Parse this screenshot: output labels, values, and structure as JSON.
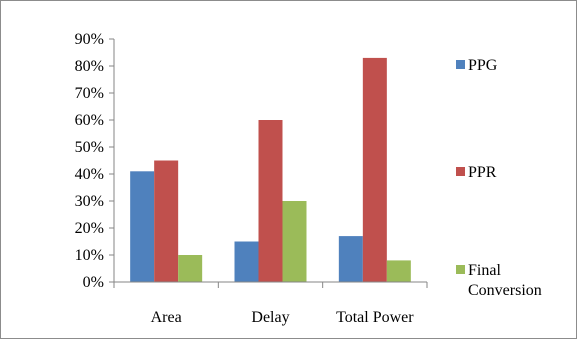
{
  "chart_data": {
    "type": "bar",
    "categories": [
      "Area",
      "Delay",
      "Total Power"
    ],
    "y_ticks": [
      "0%",
      "10%",
      "20%",
      "30%",
      "40%",
      "50%",
      "60%",
      "70%",
      "80%",
      "90%"
    ],
    "ylim": [
      0,
      90
    ],
    "unit": "%",
    "grid": false,
    "legend_position": "right",
    "series": [
      {
        "name": "PPG",
        "color": "#4f81bd",
        "values": [
          41,
          15,
          17
        ]
      },
      {
        "name": "PPR",
        "color": "#c0504d",
        "values": [
          45,
          60,
          83
        ]
      },
      {
        "name": "Final Conversion",
        "name_lines": [
          "Final",
          "Conversion"
        ],
        "color": "#9bbb59",
        "values": [
          10,
          30,
          8
        ]
      }
    ]
  }
}
